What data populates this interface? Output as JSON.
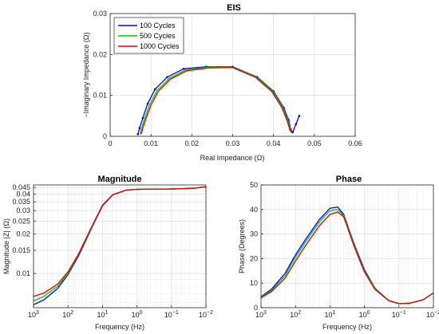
{
  "chart_data": [
    {
      "id": "eis",
      "type": "line",
      "title": "EIS",
      "xlabel": "Real Impedance (Ω)",
      "ylabel": "−Imaginary Impedance (Ω)",
      "xlim": [
        0,
        0.06
      ],
      "ylim": [
        0,
        0.03
      ],
      "xticks": [
        0,
        0.01,
        0.02,
        0.03,
        0.04,
        0.05,
        0.06
      ],
      "xtick_labels": [
        "0",
        "0.01",
        "0.02",
        "0.03",
        "0.04",
        "0.05",
        "0.06"
      ],
      "yticks": [
        0,
        0.01,
        0.02,
        0.03
      ],
      "ytick_labels": [
        "0",
        "0.01",
        "0.02",
        "0.03"
      ],
      "grid": true,
      "legend": "top-left",
      "series": [
        {
          "name": "100 Cycles",
          "color": "#0000ff",
          "markers": true,
          "x": [
            0.0068,
            0.0072,
            0.008,
            0.0092,
            0.011,
            0.014,
            0.018,
            0.0235,
            0.03,
            0.036,
            0.04,
            0.0425,
            0.0437,
            0.0442,
            0.0447,
            0.0455,
            0.0463
          ],
          "y": [
            0.0005,
            0.002,
            0.0045,
            0.008,
            0.0115,
            0.0145,
            0.0165,
            0.017,
            0.017,
            0.0145,
            0.011,
            0.007,
            0.004,
            0.0017,
            0.001,
            0.003,
            0.005
          ]
        },
        {
          "name": "500 Cycles",
          "color": "#00cc00",
          "markers": false,
          "x": [
            0.0073,
            0.0077,
            0.0085,
            0.0097,
            0.0115,
            0.0145,
            0.0184,
            0.0238,
            0.03,
            0.0358,
            0.0398,
            0.0423,
            0.0435,
            0.0441,
            0.0445
          ],
          "y": [
            0.0005,
            0.002,
            0.0045,
            0.0078,
            0.0112,
            0.0142,
            0.0162,
            0.0169,
            0.0169,
            0.0145,
            0.011,
            0.007,
            0.004,
            0.0017,
            0.001
          ]
        },
        {
          "name": "1000 Cycles",
          "color": "#e00000",
          "markers": false,
          "x": [
            0.0076,
            0.008,
            0.0088,
            0.01,
            0.0118,
            0.0148,
            0.0187,
            0.024,
            0.03,
            0.0356,
            0.0396,
            0.0421,
            0.0433,
            0.044,
            0.0443
          ],
          "y": [
            0.0005,
            0.002,
            0.0044,
            0.0076,
            0.011,
            0.014,
            0.016,
            0.0167,
            0.0168,
            0.0144,
            0.0109,
            0.0069,
            0.0039,
            0.0016,
            0.0009
          ]
        }
      ]
    },
    {
      "id": "magnitude",
      "type": "line",
      "title": "Magnitude",
      "xlabel": "Frequency (Hz)",
      "ylabel": "Magnitude |Z| (Ω)",
      "xscale": "log",
      "xreversed": true,
      "xlim": [
        1000,
        0.01
      ],
      "ylim": [
        0.0055,
        0.047
      ],
      "yscale": "log",
      "xticks": [
        1000,
        100,
        10,
        1,
        0.1,
        0.01
      ],
      "xtick_labels": [
        "10^3",
        "10^2",
        "10^1",
        "10^0",
        "10^-1",
        "10^-2"
      ],
      "yticks": [
        0.01,
        0.015,
        0.02,
        0.025,
        0.03,
        0.035,
        0.04,
        0.045
      ],
      "ytick_labels": [
        "0.01",
        "0.015",
        "0.02",
        "0.025",
        "0.03",
        "0.035",
        "0.04",
        "0.045"
      ],
      "grid": true,
      "series": [
        {
          "name": "100 Cycles",
          "color": "#0000ff",
          "x": [
            1000,
            500,
            200,
            100,
            50,
            20,
            10,
            5,
            2,
            1,
            0.5,
            0.2,
            0.1,
            0.05,
            0.02,
            0.01
          ],
          "y": [
            0.0058,
            0.0063,
            0.0077,
            0.0098,
            0.0135,
            0.0225,
            0.0325,
            0.0395,
            0.043,
            0.0435,
            0.0437,
            0.0437,
            0.0438,
            0.044,
            0.0445,
            0.0455
          ]
        },
        {
          "name": "500 Cycles",
          "color": "#00cc00",
          "x": [
            1000,
            500,
            200,
            100,
            50,
            20,
            10,
            5,
            2,
            1,
            0.5,
            0.2,
            0.1,
            0.05,
            0.02,
            0.01
          ],
          "y": [
            0.0062,
            0.0067,
            0.008,
            0.01,
            0.0138,
            0.0228,
            0.0328,
            0.0396,
            0.0431,
            0.0435,
            0.0437,
            0.0437,
            0.0438,
            0.044,
            0.0445,
            0.0455
          ]
        },
        {
          "name": "1000 Cycles",
          "color": "#e00000",
          "x": [
            1000,
            500,
            200,
            100,
            50,
            20,
            10,
            5,
            2,
            1,
            0.5,
            0.2,
            0.1,
            0.05,
            0.02,
            0.01
          ],
          "y": [
            0.0067,
            0.0071,
            0.0083,
            0.0103,
            0.014,
            0.023,
            0.033,
            0.0397,
            0.0431,
            0.0435,
            0.0437,
            0.0437,
            0.0438,
            0.044,
            0.0445,
            0.0455
          ]
        }
      ]
    },
    {
      "id": "phase",
      "type": "line",
      "title": "Phase",
      "xlabel": "Frequency (Hz)",
      "ylabel": "Phase (Degrees)",
      "xscale": "log",
      "xreversed": true,
      "xlim": [
        1000,
        0.01
      ],
      "ylim": [
        0,
        50
      ],
      "xticks": [
        1000,
        100,
        10,
        1,
        0.1,
        0.01
      ],
      "xtick_labels": [
        "10^3",
        "10^2",
        "10^1",
        "10^0",
        "10^-1",
        "10^-2"
      ],
      "yticks": [
        0,
        10,
        20,
        30,
        40,
        50
      ],
      "ytick_labels": [
        "0",
        "10",
        "20",
        "30",
        "40",
        "50"
      ],
      "grid": true,
      "series": [
        {
          "name": "100 Cycles",
          "color": "#0000ff",
          "x": [
            1000,
            500,
            200,
            100,
            50,
            20,
            10,
            6,
            4,
            2,
            1,
            0.5,
            0.2,
            0.1,
            0.05,
            0.02,
            0.01
          ],
          "y": [
            4.5,
            7.5,
            14,
            21.5,
            28,
            36,
            40.5,
            41,
            38,
            26,
            15.5,
            8,
            3,
            1.7,
            1.8,
            3.2,
            6
          ]
        },
        {
          "name": "500 Cycles",
          "color": "#00cc00",
          "x": [
            1000,
            500,
            200,
            100,
            50,
            20,
            10,
            6,
            4,
            2,
            1,
            0.5,
            0.2,
            0.1,
            0.05,
            0.02,
            0.01
          ],
          "y": [
            4.2,
            7,
            13,
            20.5,
            27,
            35,
            39.5,
            40,
            37.5,
            25.5,
            15,
            7.8,
            3,
            1.7,
            1.8,
            3.2,
            6
          ]
        },
        {
          "name": "1000 Cycles",
          "color": "#e00000",
          "x": [
            1000,
            500,
            200,
            100,
            50,
            20,
            10,
            6,
            4,
            2,
            1,
            0.5,
            0.2,
            0.1,
            0.05,
            0.02,
            0.01
          ],
          "y": [
            4,
            6.5,
            12,
            19,
            25.5,
            33.5,
            38,
            39,
            37,
            25,
            14.5,
            7.5,
            2.9,
            1.6,
            1.8,
            3.2,
            6
          ]
        }
      ]
    }
  ]
}
